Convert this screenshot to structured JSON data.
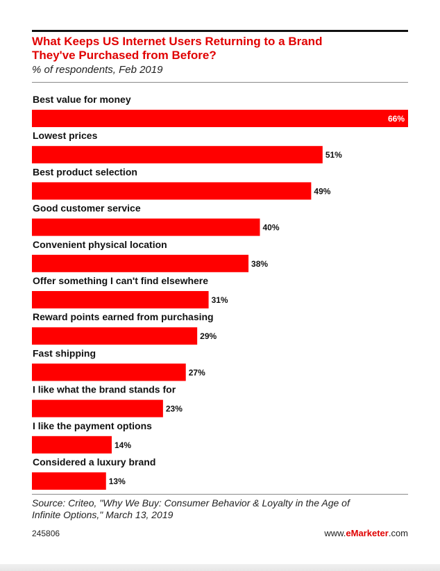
{
  "header": {
    "title_line1": "What Keeps US Internet Users Returning to a Brand",
    "title_line2": "They've Purchased from Before?",
    "subtitle": "% of respondents, Feb 2019"
  },
  "footer": {
    "source_line1": "Source: Criteo, \"Why We Buy: Consumer Behavior & Loyalty in the Age of",
    "source_line2": "Infinite Options,\" March 13, 2019",
    "chart_id": "245806",
    "brand_prefix": "www.",
    "brand_name": "eMarketer",
    "brand_suffix": ".com"
  },
  "colors": {
    "bar": "#ff0000",
    "title": "#e00000"
  },
  "chart_data": {
    "type": "bar",
    "orientation": "horizontal",
    "title": "What Keeps US Internet Users Returning to a Brand They've Purchased from Before?",
    "subtitle": "% of respondents, Feb 2019",
    "categories": [
      "Best value for money",
      "Lowest prices",
      "Best product selection",
      "Good customer service",
      "Convenient physical location",
      "Offer something I can't find elsewhere",
      "Reward points earned from purchasing",
      "Fast shipping",
      "I like what the brand stands for",
      "I like the payment options",
      "Considered a luxury brand"
    ],
    "values": [
      66,
      51,
      49,
      40,
      38,
      31,
      29,
      27,
      23,
      14,
      13
    ],
    "value_labels": [
      "66%",
      "51%",
      "49%",
      "40%",
      "38%",
      "31%",
      "29%",
      "27%",
      "23%",
      "14%",
      "13%"
    ],
    "xlim": [
      0,
      66
    ],
    "grid": false,
    "legend": "none"
  }
}
